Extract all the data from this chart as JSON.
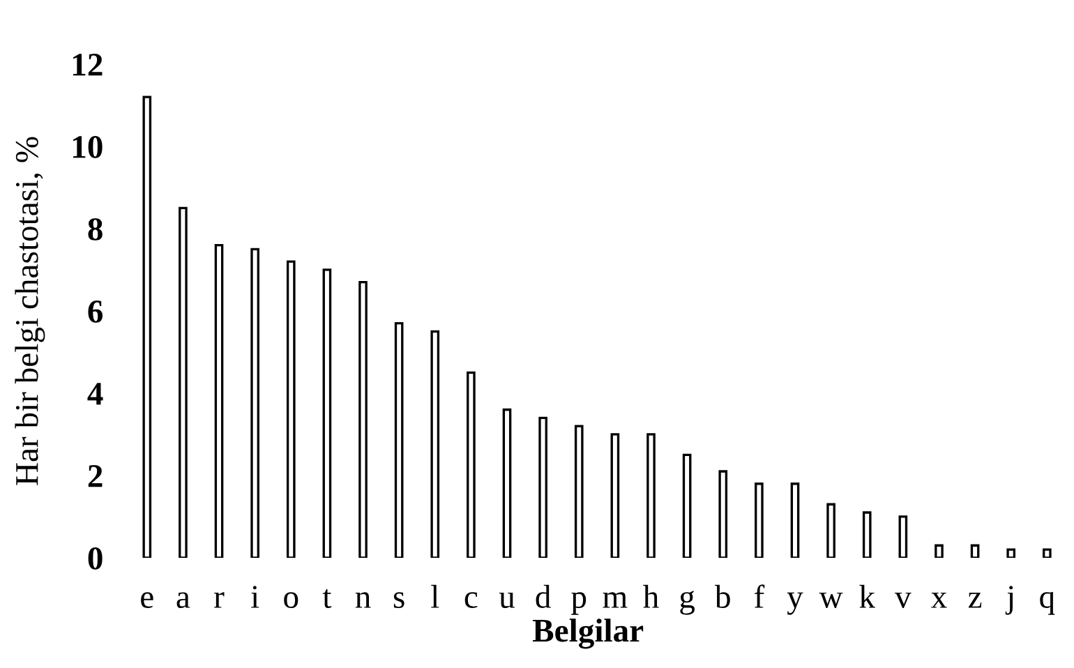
{
  "chart_data": {
    "type": "bar",
    "xlabel": "Belgilar",
    "ylabel": "Har bir belgi chastotasi, %",
    "categories": [
      "e",
      "a",
      "r",
      "i",
      "o",
      "t",
      "n",
      "s",
      "l",
      "c",
      "u",
      "d",
      "p",
      "m",
      "h",
      "g",
      "b",
      "f",
      "y",
      "w",
      "k",
      "v",
      "x",
      "z",
      "j",
      "q"
    ],
    "values": [
      11.2,
      8.5,
      7.6,
      7.5,
      7.2,
      7.0,
      6.7,
      5.7,
      5.5,
      4.5,
      3.6,
      3.4,
      3.2,
      3.0,
      3.0,
      2.5,
      2.1,
      1.8,
      1.8,
      1.3,
      1.1,
      1.0,
      0.3,
      0.3,
      0.2,
      0.2
    ],
    "color": "#ffffff",
    "ylim": [
      0,
      12
    ],
    "yticks": [
      0,
      2,
      4,
      6,
      8,
      10,
      12
    ],
    "grid": false
  }
}
